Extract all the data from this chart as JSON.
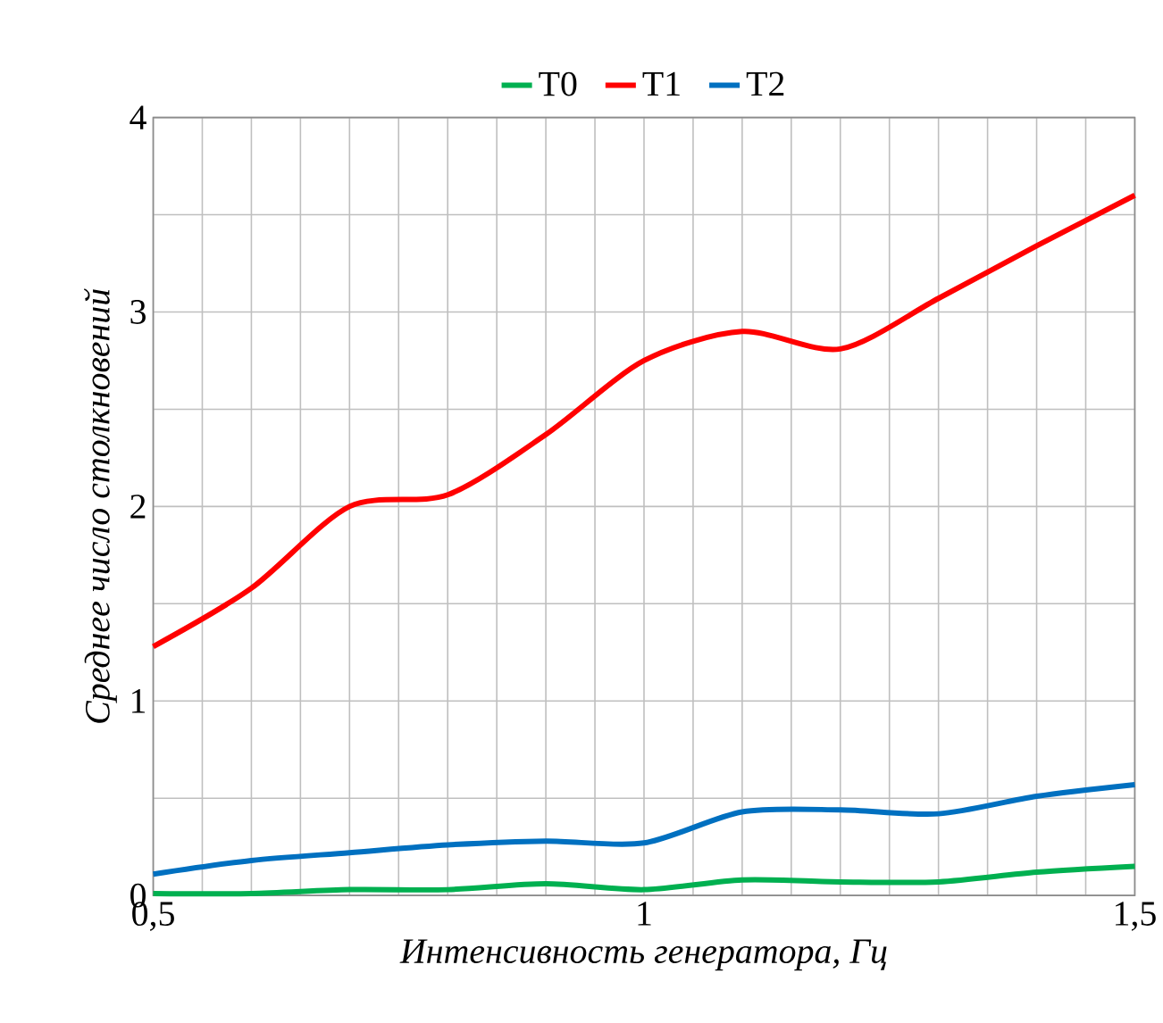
{
  "chart_data": {
    "type": "line",
    "xlabel": "Интенсивность генератора, Гц",
    "ylabel": "Среднее число столкновений",
    "x": [
      0.5,
      0.6,
      0.7,
      0.8,
      0.9,
      1.0,
      1.1,
      1.2,
      1.3,
      1.4,
      1.5
    ],
    "series": [
      {
        "name": "T0",
        "color": "#00b050",
        "values": [
          0.01,
          0.01,
          0.03,
          0.03,
          0.06,
          0.03,
          0.08,
          0.07,
          0.07,
          0.12,
          0.15
        ]
      },
      {
        "name": "T1",
        "color": "#ff0000",
        "values": [
          1.28,
          1.58,
          2.0,
          2.06,
          2.37,
          2.75,
          2.9,
          2.81,
          3.07,
          3.34,
          3.6
        ]
      },
      {
        "name": "T2",
        "color": "#0070c0",
        "values": [
          0.11,
          0.18,
          0.22,
          0.26,
          0.28,
          0.27,
          0.43,
          0.44,
          0.42,
          0.51,
          0.57
        ]
      }
    ],
    "xlim": [
      0.5,
      1.5
    ],
    "xticks": [
      {
        "value": 0.5,
        "label": "0,5"
      },
      {
        "value": 0.55,
        "label": null
      },
      {
        "value": 0.6,
        "label": null
      },
      {
        "value": 0.65,
        "label": null
      },
      {
        "value": 0.7,
        "label": null
      },
      {
        "value": 0.75,
        "label": null
      },
      {
        "value": 0.8,
        "label": null
      },
      {
        "value": 0.85,
        "label": null
      },
      {
        "value": 0.9,
        "label": null
      },
      {
        "value": 0.95,
        "label": null
      },
      1,
      {
        "value": 1.05,
        "label": null
      },
      {
        "value": 1.1,
        "label": null
      },
      {
        "value": 1.15,
        "label": null
      },
      {
        "value": 1.2,
        "label": null
      },
      {
        "value": 1.25,
        "label": null
      },
      {
        "value": 1.3,
        "label": null
      },
      {
        "value": 1.35,
        "label": null
      },
      {
        "value": 1.4,
        "label": null
      },
      {
        "value": 1.45,
        "label": null
      },
      {
        "value": 1.5,
        "label": "1,5"
      }
    ],
    "ylim": [
      0,
      4
    ],
    "yticks": [
      0,
      {
        "value": 0.5,
        "label": null
      },
      1,
      {
        "value": 1.5,
        "label": null
      },
      2,
      {
        "value": 2.5,
        "label": null
      },
      3,
      {
        "value": 3.5,
        "label": null
      },
      4
    ],
    "grid": true,
    "legend": "top",
    "marker": "none",
    "line_style": "solid"
  }
}
